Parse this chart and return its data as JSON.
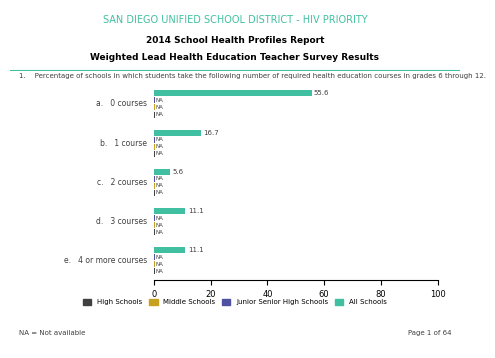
{
  "title_line1": "SAN DIEGO UNIFIED SCHOOL DISTRICT - HIV PRIORITY",
  "title_line2": "2014 School Health Profiles Report",
  "title_line3": "Weighted Lead Health Education Teacher Survey Results",
  "question": "1.    Percentage of schools in which students take the following number of required health education courses in grades 6 through 12.",
  "categories": [
    "a.   0 courses",
    "b.   1 course",
    "c.   2 courses",
    "d.   3 courses",
    "e.   4 or more courses"
  ],
  "series_labels": [
    "High Schools",
    "Middle Schools",
    "Junior Senior High Schools",
    "All Schools"
  ],
  "colors": [
    "#404040",
    "#c8a020",
    "#5050a0",
    "#40c0a0"
  ],
  "na_label": "NA",
  "values": [
    [
      0,
      0,
      0,
      55.6
    ],
    [
      0,
      0,
      0,
      16.7
    ],
    [
      0,
      0,
      0,
      5.6
    ],
    [
      0,
      0,
      0,
      11.1
    ],
    [
      0,
      0,
      0,
      11.1
    ]
  ],
  "bar_labels": [
    [
      "NA",
      "NA",
      "NA",
      "55.6"
    ],
    [
      "NA",
      "NA",
      "NA",
      "16.7"
    ],
    [
      "NA",
      "NA",
      "NA",
      "5.6"
    ],
    [
      "NA",
      "NA",
      "NA",
      "11.1"
    ],
    [
      "NA",
      "NA",
      "NA",
      "11.1"
    ]
  ],
  "xlim": [
    0,
    100
  ],
  "xticks": [
    0,
    20,
    40,
    60,
    80,
    100
  ],
  "footer_left": "NA = Not available",
  "footer_right": "Page 1 of 64",
  "bar_height": 0.18,
  "title_color": "#40c0a0",
  "header_line_color": "#40c0a0"
}
